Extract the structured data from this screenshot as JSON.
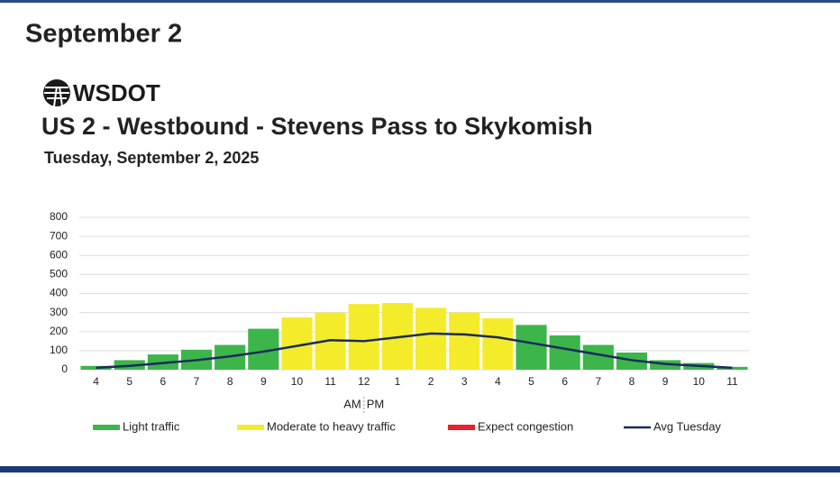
{
  "header": "September 2",
  "logo": "WSDOT",
  "chart_data": {
    "type": "bar",
    "title": "US 2 - Westbound - Stevens Pass to Skykomish",
    "subtitle": "Tuesday, September 2, 2025",
    "categories": [
      "4",
      "5",
      "6",
      "7",
      "8",
      "9",
      "10",
      "11",
      "12",
      "1",
      "2",
      "3",
      "4",
      "5",
      "6",
      "7",
      "8",
      "9",
      "10",
      "11"
    ],
    "annotations": [
      "AM",
      "PM"
    ],
    "series": [
      {
        "name": "Light traffic",
        "color": "#3cb54a",
        "values": [
          20,
          50,
          80,
          105,
          130,
          215,
          null,
          null,
          null,
          null,
          null,
          null,
          null,
          235,
          180,
          130,
          90,
          50,
          35,
          15
        ]
      },
      {
        "name": "Moderate to heavy traffic",
        "color": "#f4ec2a",
        "values": [
          null,
          null,
          null,
          null,
          null,
          null,
          275,
          300,
          345,
          350,
          325,
          300,
          270,
          null,
          null,
          null,
          null,
          null,
          null,
          null
        ]
      },
      {
        "name": "Expect congestion",
        "color": "#e8212a",
        "values": [
          null,
          null,
          null,
          null,
          null,
          null,
          null,
          null,
          null,
          null,
          null,
          null,
          null,
          null,
          null,
          null,
          null,
          null,
          null,
          null
        ]
      },
      {
        "name": "Avg Tuesday",
        "type": "line",
        "color": "#1b2a5c",
        "values": [
          10,
          20,
          35,
          50,
          70,
          95,
          125,
          155,
          150,
          170,
          190,
          185,
          170,
          140,
          110,
          80,
          50,
          30,
          20,
          10
        ]
      }
    ],
    "ylim": [
      0,
      800
    ],
    "yticks": [
      0,
      100,
      200,
      300,
      400,
      500,
      600,
      700,
      800
    ],
    "grid": true
  }
}
